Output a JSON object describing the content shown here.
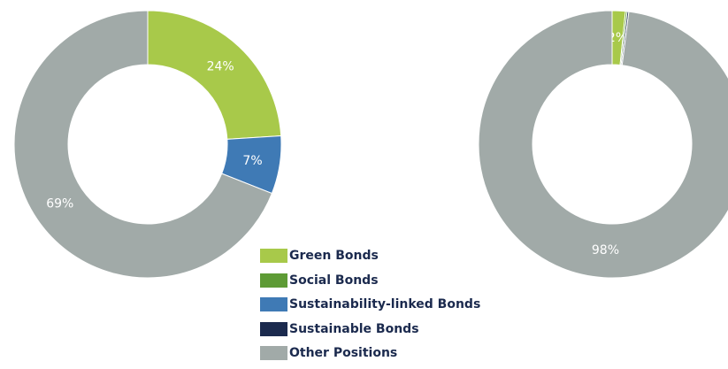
{
  "colors": {
    "green_bonds": "#a8c94a",
    "social_bonds": "#5e9b35",
    "sustainability_linked_bonds": "#3f7ab5",
    "sustainable_bonds": "#1b2a4e",
    "other_positions": "#a1aaa8"
  },
  "legend": {
    "items": [
      {
        "label": "Green Bonds",
        "color": "#a8c94a"
      },
      {
        "label": "Social Bonds",
        "color": "#5e9b35"
      },
      {
        "label": "Sustainability-linked Bonds",
        "color": "#3f7ab5"
      },
      {
        "label": "Sustainable Bonds",
        "color": "#1b2a4e"
      },
      {
        "label": "Other Positions",
        "color": "#a1aaa8"
      }
    ]
  },
  "chart_data": [
    {
      "type": "pie",
      "variant": "donut",
      "slices": [
        {
          "name": "Green Bonds",
          "value": 24,
          "label": "24%",
          "color": "#a8c94a"
        },
        {
          "name": "Sustainability-linked Bonds",
          "value": 7,
          "label": "7%",
          "color": "#3f7ab5"
        },
        {
          "name": "Other Positions",
          "value": 69,
          "label": "69%",
          "color": "#a1aaa8"
        }
      ],
      "legend_position": "bottom-center"
    },
    {
      "type": "pie",
      "variant": "donut",
      "slices": [
        {
          "name": "Green Bonds",
          "value": 1.6,
          "label": "2%",
          "color": "#a8c94a"
        },
        {
          "name": "Social Bonds",
          "value": 0.2,
          "label": "",
          "color": "#5e9b35"
        },
        {
          "name": "Sustainable Bonds",
          "value": 0.2,
          "label": "",
          "color": "#1b2a4e"
        },
        {
          "name": "Other Positions",
          "value": 98,
          "label": "98%",
          "color": "#a1aaa8"
        }
      ],
      "legend_position": "bottom-left"
    }
  ]
}
